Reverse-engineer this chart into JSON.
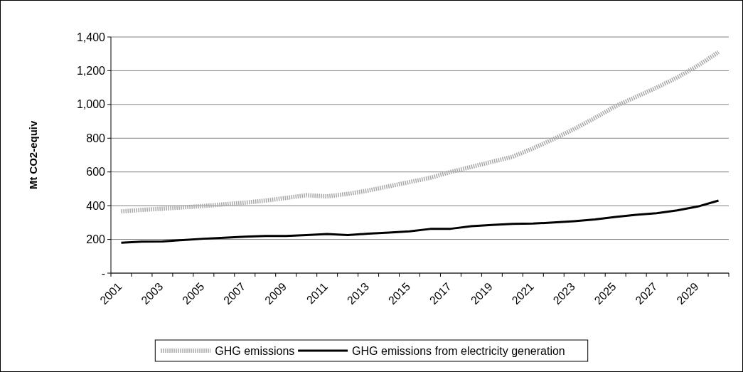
{
  "chart_data": {
    "type": "line",
    "ylabel": "Mt CO2-equiv",
    "categories": [
      "2001",
      null,
      "2003",
      null,
      "2005",
      null,
      "2007",
      null,
      "2009",
      null,
      "2011",
      null,
      "2013",
      null,
      "2015",
      null,
      "2017",
      null,
      "2019",
      null,
      "2021",
      null,
      "2023",
      null,
      "2025",
      null,
      "2027",
      null,
      "2029",
      null
    ],
    "series": [
      {
        "name": "GHG emissions",
        "color": "#a8a8a8",
        "line_style": "dotted",
        "values": [
          366,
          375,
          382,
          390,
          398,
          408,
          418,
          430,
          446,
          462,
          455,
          470,
          490,
          515,
          540,
          565,
          600,
          630,
          660,
          690,
          740,
          795,
          855,
          920,
          990,
          1045,
          1100,
          1160,
          1230,
          1310
        ]
      },
      {
        "name": "GHG emissions from electricity generation",
        "color": "#000000",
        "line_style": "solid",
        "values": [
          180,
          187,
          188,
          196,
          204,
          210,
          216,
          220,
          220,
          226,
          232,
          226,
          234,
          240,
          248,
          262,
          263,
          278,
          286,
          292,
          294,
          300,
          308,
          318,
          333,
          346,
          355,
          372,
          395,
          430
        ]
      }
    ],
    "ylim": [
      0,
      1400
    ],
    "yticks": [
      {
        "value": 0,
        "label": "-"
      },
      {
        "value": 200,
        "label": "200"
      },
      {
        "value": 400,
        "label": "400"
      },
      {
        "value": 600,
        "label": "600"
      },
      {
        "value": 800,
        "label": "800"
      },
      {
        "value": 1000,
        "label": "1,000"
      },
      {
        "value": 1200,
        "label": "1,200"
      },
      {
        "value": 1400,
        "label": "1,400"
      }
    ],
    "grid": "y",
    "legend": "bottom",
    "marker": "none"
  }
}
